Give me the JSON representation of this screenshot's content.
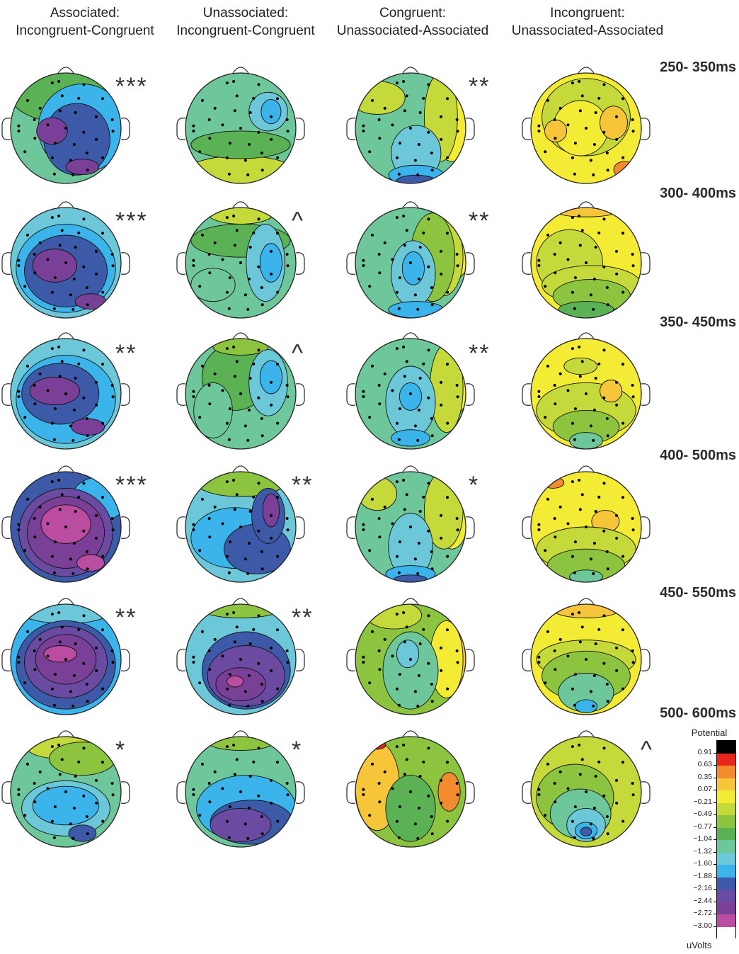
{
  "columns": [
    {
      "line1": "Associated:",
      "line2": "Incongruent-Congruent"
    },
    {
      "line1": "Unassociated:",
      "line2": "Incongruent-Congruent"
    },
    {
      "line1": "Congruent:",
      "line2": "Unassociated-Associated"
    },
    {
      "line1": "Incongruent:",
      "line2": "Unassociated-Associated"
    }
  ],
  "time_windows": [
    "250- 350ms",
    "300- 400ms",
    "350- 450ms",
    "400- 500ms",
    "450- 550ms",
    "500- 600ms"
  ],
  "significance": [
    [
      "***",
      "",
      "**",
      ""
    ],
    [
      "***",
      "^",
      "**",
      ""
    ],
    [
      "**",
      "^",
      "**",
      ""
    ],
    [
      "***",
      "**",
      "*",
      ""
    ],
    [
      "**",
      "**",
      "",
      ""
    ],
    [
      "*",
      "*",
      "",
      "^"
    ]
  ],
  "legend": {
    "title": "Potential",
    "unit": "uVolts",
    "levels": [
      "0.91",
      "0.63",
      "0.35",
      "0.07",
      "−0.21",
      "−0.49",
      "−0.77",
      "−1.04",
      "−1.32",
      "−1.60",
      "−1.88",
      "−2.16",
      "−2.44",
      "−2.72",
      "−3.00"
    ],
    "colors": [
      "#000000",
      "#e8261e",
      "#f28a2e",
      "#f6c53a",
      "#f4ec34",
      "#c5d93a",
      "#8cc43f",
      "#5ab255",
      "#6ec79a",
      "#6cc8d9",
      "#3ab4ea",
      "#3c5aa8",
      "#6a4ba1",
      "#7a3f97",
      "#bb4da0",
      "#ffffff"
    ]
  },
  "maps": [
    [
      {
        "base": "#6ec79a",
        "blobs": [
          [
            "#5ab255",
            0.0,
            -0.6,
            1.0,
            0.5
          ],
          [
            "#3ab4ea",
            0.3,
            0.0,
            0.8,
            0.8
          ],
          [
            "#3c5aa8",
            0.2,
            0.2,
            0.6,
            0.65
          ],
          [
            "#7a3f97",
            -0.25,
            0.05,
            0.28,
            0.24
          ],
          [
            "#7a3f97",
            0.3,
            0.7,
            0.3,
            0.14
          ]
        ]
      },
      {
        "base": "#6ec79a",
        "blobs": [
          [
            "#c5d93a",
            0.0,
            0.8,
            1.0,
            0.3
          ],
          [
            "#5ab255",
            0.0,
            0.3,
            0.9,
            0.25
          ],
          [
            "#6cc8d9",
            0.5,
            -0.3,
            0.35,
            0.35
          ],
          [
            "#3ab4ea",
            0.55,
            -0.3,
            0.18,
            0.22
          ]
        ]
      },
      {
        "base": "#6ec79a",
        "blobs": [
          [
            "#f4ec34",
            0.75,
            -0.2,
            0.4,
            0.8
          ],
          [
            "#c5d93a",
            0.55,
            -0.2,
            0.3,
            0.8
          ],
          [
            "#c5d93a",
            -0.6,
            -0.55,
            0.5,
            0.3
          ],
          [
            "#6cc8d9",
            0.1,
            0.45,
            0.45,
            0.5
          ],
          [
            "#3ab4ea",
            0.1,
            0.85,
            0.5,
            0.18
          ],
          [
            "#3c5aa8",
            0.1,
            0.95,
            0.35,
            0.1
          ]
        ]
      },
      {
        "base": "#f4ec34",
        "blobs": [
          [
            "#c5d93a",
            0.0,
            -0.2,
            0.8,
            0.7
          ],
          [
            "#f4ec34",
            -0.1,
            0.0,
            0.5,
            0.5
          ],
          [
            "#f6c53a",
            -0.55,
            0.05,
            0.2,
            0.2
          ],
          [
            "#f6c53a",
            0.5,
            -0.1,
            0.25,
            0.3
          ],
          [
            "#f28a2e",
            0.7,
            0.75,
            0.2,
            0.15
          ]
        ]
      }
    ],
    [
      {
        "base": "#6cc8d9",
        "blobs": [
          [
            "#3ab4ea",
            0.0,
            0.1,
            0.9,
            0.8
          ],
          [
            "#3c5aa8",
            0.0,
            0.15,
            0.75,
            0.65
          ],
          [
            "#7a3f97",
            -0.2,
            0.05,
            0.4,
            0.3
          ],
          [
            "#7a3f97",
            0.45,
            0.7,
            0.28,
            0.14
          ]
        ]
      },
      {
        "base": "#6ec79a",
        "blobs": [
          [
            "#c5d93a",
            0.0,
            -0.9,
            0.6,
            0.2
          ],
          [
            "#5ab255",
            0.0,
            -0.4,
            0.9,
            0.3
          ],
          [
            "#6cc8d9",
            0.45,
            0.0,
            0.35,
            0.7
          ],
          [
            "#3ab4ea",
            0.55,
            0.0,
            0.2,
            0.35
          ],
          [
            "#6ec79a",
            -0.5,
            0.4,
            0.4,
            0.3
          ]
        ]
      },
      {
        "base": "#6ec79a",
        "blobs": [
          [
            "#f4ec34",
            0.75,
            -0.2,
            0.35,
            0.5
          ],
          [
            "#c5d93a",
            0.6,
            -0.1,
            0.35,
            0.7
          ],
          [
            "#8cc43f",
            0.4,
            -0.1,
            0.4,
            0.8
          ],
          [
            "#6cc8d9",
            0.05,
            0.2,
            0.4,
            0.6
          ],
          [
            "#3ab4ea",
            0.05,
            0.1,
            0.2,
            0.3
          ],
          [
            "#3ab4ea",
            0.1,
            0.85,
            0.5,
            0.15
          ]
        ]
      },
      {
        "base": "#f4ec34",
        "blobs": [
          [
            "#c5d93a",
            -0.3,
            0.0,
            0.6,
            0.6
          ],
          [
            "#c5d93a",
            0.1,
            0.4,
            0.9,
            0.35
          ],
          [
            "#8cc43f",
            0.1,
            0.6,
            0.7,
            0.3
          ],
          [
            "#5ab255",
            0.0,
            0.85,
            0.5,
            0.15
          ],
          [
            "#f6c53a",
            0.0,
            -0.95,
            0.6,
            0.12
          ]
        ]
      }
    ],
    [
      {
        "base": "#6cc8d9",
        "blobs": [
          [
            "#3ab4ea",
            0.0,
            0.1,
            0.9,
            0.8
          ],
          [
            "#3c5aa8",
            -0.1,
            0.0,
            0.7,
            0.55
          ],
          [
            "#7a3f97",
            -0.2,
            -0.05,
            0.45,
            0.25
          ],
          [
            "#7a3f97",
            0.4,
            0.6,
            0.3,
            0.15
          ]
        ]
      },
      {
        "base": "#6ec79a",
        "blobs": [
          [
            "#5ab255",
            -0.1,
            -0.3,
            0.6,
            0.6
          ],
          [
            "#8cc43f",
            0.0,
            -0.85,
            0.5,
            0.15
          ],
          [
            "#6cc8d9",
            0.5,
            -0.2,
            0.35,
            0.6
          ],
          [
            "#3ab4ea",
            0.55,
            -0.3,
            0.2,
            0.3
          ],
          [
            "#6ec79a",
            -0.5,
            0.3,
            0.35,
            0.5
          ]
        ]
      },
      {
        "base": "#6ec79a",
        "blobs": [
          [
            "#f4ec34",
            0.75,
            -0.1,
            0.3,
            0.5
          ],
          [
            "#c5d93a",
            0.65,
            -0.1,
            0.3,
            0.8
          ],
          [
            "#6cc8d9",
            0.0,
            0.15,
            0.45,
            0.65
          ],
          [
            "#3ab4ea",
            0.0,
            0.05,
            0.2,
            0.25
          ],
          [
            "#3ab4ea",
            0.0,
            0.8,
            0.35,
            0.15
          ]
        ]
      },
      {
        "base": "#f4ec34",
        "blobs": [
          [
            "#c5d93a",
            0.0,
            0.3,
            0.9,
            0.5
          ],
          [
            "#8cc43f",
            0.0,
            0.6,
            0.6,
            0.3
          ],
          [
            "#6ec79a",
            0.0,
            0.85,
            0.3,
            0.15
          ],
          [
            "#f6c53a",
            0.45,
            -0.05,
            0.2,
            0.2
          ],
          [
            "#c5d93a",
            -0.1,
            -0.5,
            0.3,
            0.15
          ]
        ]
      }
    ],
    [
      {
        "base": "#3c5aa8",
        "blobs": [
          [
            "#3ab4ea",
            0.6,
            -0.5,
            0.5,
            0.4
          ],
          [
            "#6a4ba1",
            0.0,
            0.1,
            0.85,
            0.8
          ],
          [
            "#7a3f97",
            0.0,
            0.1,
            0.7,
            0.65
          ],
          [
            "#bb4da0",
            0.0,
            -0.05,
            0.45,
            0.35
          ],
          [
            "#bb4da0",
            0.45,
            0.65,
            0.25,
            0.15
          ]
        ]
      },
      {
        "base": "#6cc8d9",
        "blobs": [
          [
            "#8cc43f",
            0.0,
            -0.8,
            0.8,
            0.25
          ],
          [
            "#3ab4ea",
            -0.1,
            0.2,
            0.8,
            0.55
          ],
          [
            "#3c5aa8",
            0.3,
            0.4,
            0.6,
            0.45
          ],
          [
            "#3c5aa8",
            0.5,
            -0.2,
            0.3,
            0.5
          ],
          [
            "#7a3f97",
            0.55,
            -0.3,
            0.15,
            0.3
          ]
        ]
      },
      {
        "base": "#6ec79a",
        "blobs": [
          [
            "#f4ec34",
            0.75,
            -0.2,
            0.3,
            0.6
          ],
          [
            "#c5d93a",
            0.6,
            -0.3,
            0.35,
            0.7
          ],
          [
            "#c5d93a",
            -0.6,
            -0.6,
            0.35,
            0.3
          ],
          [
            "#6cc8d9",
            0.0,
            0.35,
            0.4,
            0.6
          ],
          [
            "#3ab4ea",
            0.0,
            0.85,
            0.45,
            0.15
          ],
          [
            "#3c5aa8",
            0.0,
            0.95,
            0.3,
            0.08
          ]
        ]
      },
      {
        "base": "#f4ec34",
        "blobs": [
          [
            "#f6c53a",
            0.35,
            -0.1,
            0.25,
            0.2
          ],
          [
            "#c5d93a",
            0.0,
            0.4,
            0.9,
            0.4
          ],
          [
            "#8cc43f",
            0.0,
            0.7,
            0.7,
            0.3
          ],
          [
            "#6ec79a",
            0.0,
            0.9,
            0.3,
            0.12
          ],
          [
            "#f28a2e",
            -0.6,
            -0.8,
            0.2,
            0.1
          ]
        ]
      }
    ],
    [
      {
        "base": "#3ab4ea",
        "blobs": [
          [
            "#6cc8d9",
            0.0,
            -0.85,
            0.8,
            0.2
          ],
          [
            "#3c5aa8",
            0.0,
            0.1,
            0.9,
            0.8
          ],
          [
            "#6a4ba1",
            0.0,
            0.05,
            0.75,
            0.65
          ],
          [
            "#7a3f97",
            0.0,
            0.0,
            0.55,
            0.45
          ],
          [
            "#bb4da0",
            -0.1,
            -0.1,
            0.3,
            0.15
          ]
        ]
      },
      {
        "base": "#6cc8d9",
        "blobs": [
          [
            "#8cc43f",
            0.0,
            -0.9,
            0.7,
            0.15
          ],
          [
            "#3c5aa8",
            0.1,
            0.2,
            0.8,
            0.7
          ],
          [
            "#6a4ba1",
            0.1,
            0.3,
            0.7,
            0.55
          ],
          [
            "#7a3f97",
            0.0,
            0.45,
            0.45,
            0.3
          ],
          [
            "#bb4da0",
            -0.1,
            0.4,
            0.15,
            0.1
          ]
        ]
      },
      {
        "base": "#8cc43f",
        "blobs": [
          [
            "#f6c53a",
            0.8,
            0.0,
            0.25,
            0.5
          ],
          [
            "#f4ec34",
            0.65,
            0.0,
            0.3,
            0.7
          ],
          [
            "#c5d93a",
            -0.3,
            -0.8,
            0.5,
            0.25
          ],
          [
            "#6ec79a",
            0.0,
            0.2,
            0.5,
            0.7
          ],
          [
            "#6cc8d9",
            -0.05,
            -0.1,
            0.2,
            0.25
          ]
        ]
      },
      {
        "base": "#f4ec34",
        "blobs": [
          [
            "#f6c53a",
            0.0,
            -0.9,
            0.6,
            0.15
          ],
          [
            "#c5d93a",
            0.0,
            0.0,
            0.9,
            0.35
          ],
          [
            "#8cc43f",
            0.0,
            0.3,
            0.8,
            0.45
          ],
          [
            "#6ec79a",
            0.0,
            0.6,
            0.5,
            0.35
          ],
          [
            "#3ab4ea",
            0.0,
            0.85,
            0.2,
            0.12
          ]
        ]
      }
    ],
    [
      {
        "base": "#6ec79a",
        "blobs": [
          [
            "#c5d93a",
            -0.1,
            -0.8,
            0.6,
            0.2
          ],
          [
            "#8cc43f",
            0.3,
            -0.6,
            0.6,
            0.3
          ],
          [
            "#6cc8d9",
            0.0,
            0.3,
            0.8,
            0.5
          ],
          [
            "#3ab4ea",
            0.0,
            0.25,
            0.6,
            0.35
          ],
          [
            "#3c5aa8",
            0.3,
            0.75,
            0.25,
            0.15
          ]
        ]
      },
      {
        "base": "#6ec79a",
        "blobs": [
          [
            "#8cc43f",
            0.0,
            -0.9,
            0.6,
            0.15
          ],
          [
            "#3ab4ea",
            0.1,
            0.3,
            0.9,
            0.6
          ],
          [
            "#3c5aa8",
            0.2,
            0.55,
            0.75,
            0.4
          ],
          [
            "#6a4ba1",
            0.0,
            0.6,
            0.55,
            0.3
          ]
        ]
      },
      {
        "base": "#8cc43f",
        "blobs": [
          [
            "#f28a2e",
            -0.7,
            -0.2,
            0.3,
            0.6
          ],
          [
            "#f6c53a",
            -0.6,
            -0.1,
            0.4,
            0.8
          ],
          [
            "#e8261e",
            -0.6,
            -0.85,
            0.15,
            0.08
          ],
          [
            "#f28a2e",
            0.7,
            0.0,
            0.2,
            0.35
          ],
          [
            "#5ab255",
            0.0,
            0.3,
            0.45,
            0.6
          ]
        ]
      },
      {
        "base": "#c5d93a",
        "blobs": [
          [
            "#8cc43f",
            -0.2,
            0.1,
            0.7,
            0.6
          ],
          [
            "#6ec79a",
            -0.1,
            0.4,
            0.55,
            0.45
          ],
          [
            "#6cc8d9",
            0.0,
            0.6,
            0.35,
            0.3
          ],
          [
            "#3ab4ea",
            0.0,
            0.7,
            0.2,
            0.15
          ],
          [
            "#3c5aa8",
            0.0,
            0.72,
            0.1,
            0.08
          ]
        ]
      }
    ]
  ]
}
